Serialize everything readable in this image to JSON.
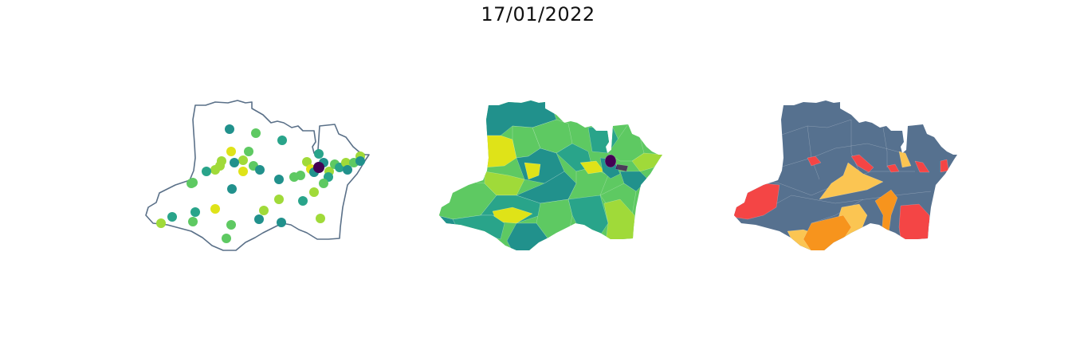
{
  "title": "17/01/2022",
  "colors": {
    "outline": "#5a7088",
    "viridis_dark": "#440154",
    "viridis_teal": "#21918c",
    "viridis_mid": "#29a48a",
    "viridis_green": "#5ec962",
    "viridis_lime": "#a0da39",
    "viridis_yellow": "#dfe318",
    "class_base": "#56718f",
    "class_red": "#f44545",
    "class_orange": "#f7941d",
    "class_light": "#fbc552"
  },
  "panels": [
    {
      "kind": "points-map"
    },
    {
      "kind": "choropleth-viridis"
    },
    {
      "kind": "choropleth-classes"
    }
  ]
}
